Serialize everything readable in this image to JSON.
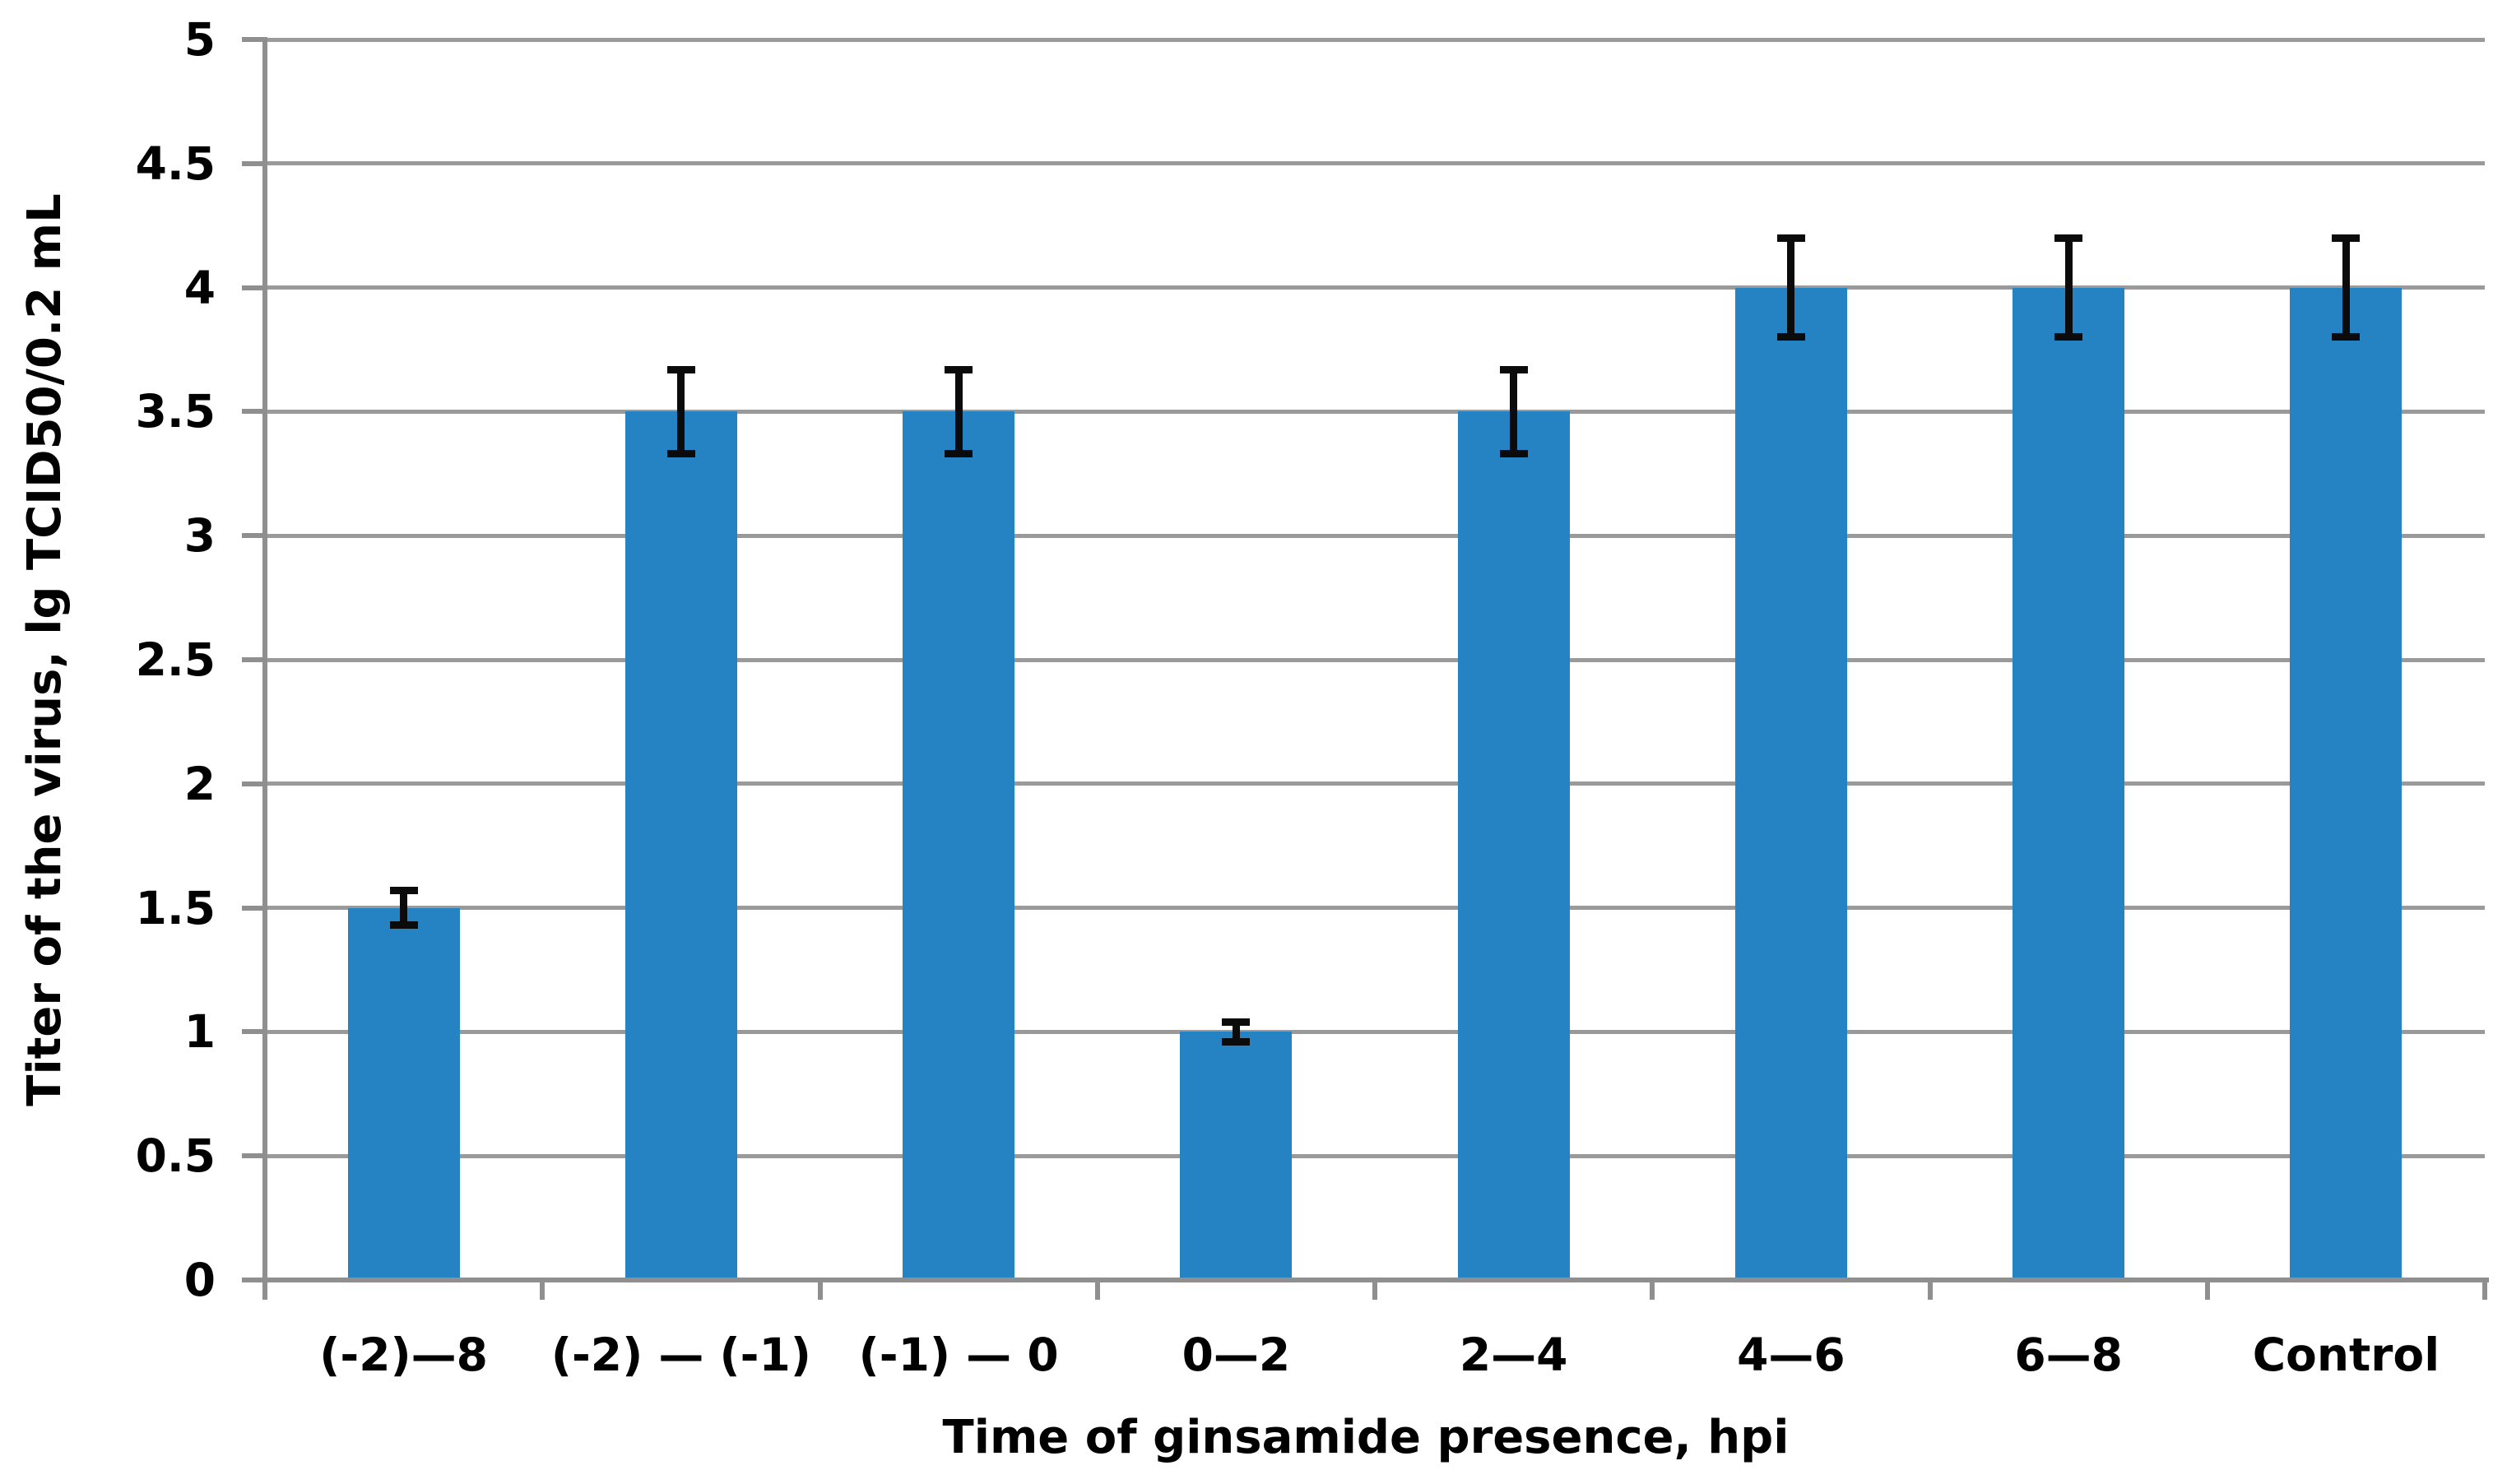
{
  "chart_data": {
    "type": "bar",
    "title": "",
    "xlabel": "Time of ginsamide presence, hpi",
    "ylabel": "Titer of the virus, lg TCID50/0.2 mL",
    "categories": [
      "(-2)—8",
      "(-2) — (-1)",
      "(-1) — 0",
      "0—2",
      "2—4",
      "4—6",
      "6—8",
      "Control"
    ],
    "values": [
      1.5,
      3.5,
      3.5,
      1.0,
      3.5,
      4.0,
      4.0,
      4.0
    ],
    "errors": [
      0.07,
      0.17,
      0.17,
      0.04,
      0.17,
      0.2,
      0.2,
      0.2
    ],
    "ylim": [
      0,
      5
    ],
    "ytick_step": 0.5,
    "ytick_labels": [
      "0",
      "0.5",
      "1",
      "1.5",
      "2",
      "2.5",
      "3",
      "3.5",
      "4",
      "4.5",
      "5"
    ],
    "grid": true,
    "legend": "none",
    "colors": {
      "bar_fill": "#2583C4",
      "gridline": "#9A9A9A",
      "axis_line": "#8F8F8F",
      "error_bar": "#0B0B0B",
      "text": "#000000",
      "background": "#FFFFFF"
    }
  }
}
